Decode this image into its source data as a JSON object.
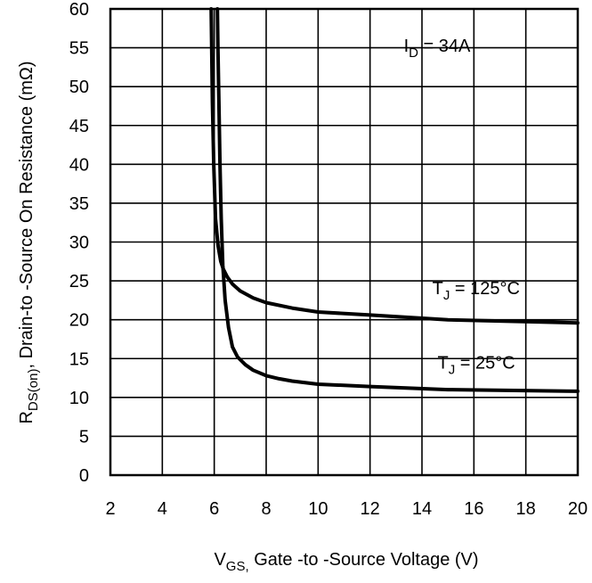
{
  "chart_data": {
    "type": "line",
    "xlabel": {
      "main": "V",
      "sub": "GS,",
      "rest": " Gate -to -Source Voltage  (V)"
    },
    "ylabel": {
      "main": "R",
      "sub": "DS(on)",
      "rest": ",  Drain-to -Source On Resistance (mΩ)"
    },
    "xlim": [
      2,
      20
    ],
    "ylim": [
      0,
      60
    ],
    "xticks": [
      "2",
      "4",
      "6",
      "8",
      "10",
      "12",
      "14",
      "16",
      "18",
      "20"
    ],
    "yticks": [
      "0",
      "5",
      "10",
      "15",
      "20",
      "25",
      "30",
      "35",
      "40",
      "45",
      "50",
      "55",
      "60"
    ],
    "grid": true,
    "annotations": [
      {
        "main": "I",
        "sub": "D",
        "rest": " = 34A",
        "x": 13.3,
        "y": 54.5
      },
      {
        "main": "T",
        "sub": "J",
        "rest": " = 125°C",
        "x": 14.4,
        "y": 23.3
      },
      {
        "main": "T",
        "sub": "J",
        "rest": " = 25°C",
        "x": 14.6,
        "y": 13.7
      }
    ],
    "series": [
      {
        "label": {
          "main": "T",
          "sub": "J",
          "rest": " = 125°C"
        },
        "x": [
          5.88,
          5.9,
          5.93,
          5.98,
          6.05,
          6.15,
          6.25,
          6.35,
          6.5,
          6.7,
          7.0,
          7.5,
          8.0,
          9.0,
          10.0,
          12.0,
          15.0,
          20.0
        ],
        "y": [
          60,
          55,
          48,
          40,
          33,
          29.5,
          27.5,
          26.5,
          25.5,
          24.6,
          23.7,
          22.8,
          22.2,
          21.5,
          21.0,
          20.6,
          20.0,
          19.6
        ]
      },
      {
        "label": {
          "main": "T",
          "sub": "J",
          "rest": " = 25°C"
        },
        "x": [
          6.12,
          6.14,
          6.18,
          6.22,
          6.27,
          6.33,
          6.42,
          6.55,
          6.7,
          6.9,
          7.2,
          7.5,
          8.0,
          8.5,
          9.0,
          10.0,
          12.0,
          15.0,
          20.0
        ],
        "y": [
          60,
          55,
          48,
          40,
          33,
          27,
          22.5,
          19.0,
          16.5,
          15.2,
          14.2,
          13.5,
          12.8,
          12.4,
          12.1,
          11.7,
          11.4,
          11.0,
          10.8
        ]
      }
    ]
  }
}
